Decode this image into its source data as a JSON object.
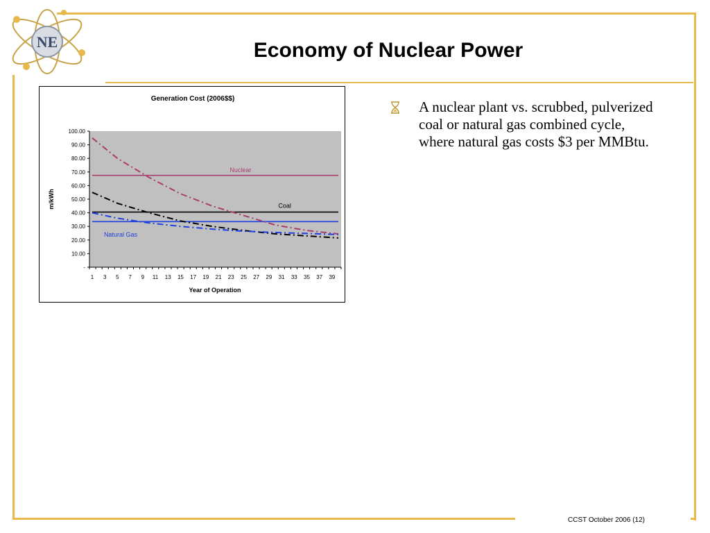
{
  "slide": {
    "title": "Economy of Nuclear Power",
    "logo_text": "NE",
    "bullet": "A nuclear plant vs. scrubbed, pulverized coal or natural gas combined cycle, where natural gas costs $3 per MMBtu.",
    "footer": "CCST October 2006 (12)"
  },
  "colors": {
    "frame": "#e8b94a",
    "plot_bg": "#c0c0c0",
    "nuclear": "#a83d6e",
    "coal": "#000000",
    "gas": "#1f3fe0"
  },
  "chart_data": {
    "type": "line",
    "title": "Generation Cost (2006$$)",
    "xlabel": "Year of Operation",
    "ylabel": "m/kWh",
    "xlim": [
      1,
      40
    ],
    "ylim": [
      0,
      100
    ],
    "x_ticks": [
      "1",
      "3",
      "5",
      "7",
      "9",
      "11",
      "13",
      "15",
      "17",
      "19",
      "21",
      "23",
      "25",
      "27",
      "29",
      "31",
      "33",
      "35",
      "37",
      "39"
    ],
    "y_ticks": [
      "-",
      "10.00",
      "20.00",
      "30.00",
      "40.00",
      "50.00",
      "60.00",
      "70.00",
      "80.00",
      "90.00",
      "100.00"
    ],
    "grid": false,
    "series": [
      {
        "name": "Nuclear",
        "style": "solid",
        "color": "#a83d6e",
        "x": [
          1,
          40
        ],
        "y": [
          67.5,
          67.5
        ]
      },
      {
        "name": "Coal",
        "style": "solid",
        "color": "#000000",
        "x": [
          1,
          40
        ],
        "y": [
          40.5,
          40.5
        ]
      },
      {
        "name": "Natural Gas",
        "style": "solid",
        "color": "#1f3fe0",
        "x": [
          1,
          40
        ],
        "y": [
          33.5,
          33.5
        ]
      },
      {
        "style": "dashdot",
        "color": "#a83d6e",
        "x": [
          1,
          5,
          10,
          15,
          20,
          25,
          30,
          35,
          40
        ],
        "y": [
          95,
          80,
          66,
          54,
          45,
          38,
          31,
          27,
          24.5
        ]
      },
      {
        "style": "dashdot",
        "color": "#000000",
        "x": [
          1,
          5,
          10,
          15,
          20,
          25,
          30,
          35,
          40
        ],
        "y": [
          55,
          47,
          40,
          34,
          30,
          27,
          24.5,
          23,
          21.5
        ]
      },
      {
        "style": "dashdot",
        "color": "#1f3fe0",
        "x": [
          1,
          5,
          10,
          15,
          20,
          25,
          30,
          35,
          40
        ],
        "y": [
          40,
          36,
          32.5,
          30,
          28,
          26.5,
          25.5,
          24.8,
          24
        ]
      }
    ],
    "annotations": [
      {
        "text": "Nuclear",
        "x": 24.5,
        "y": 70,
        "color": "#a83d6e"
      },
      {
        "text": "Coal",
        "x": 31.5,
        "y": 43.5,
        "color": "#000000"
      },
      {
        "text": "Natural Gas",
        "x": 5.5,
        "y": 22.5,
        "color": "#1f3fe0"
      }
    ]
  }
}
